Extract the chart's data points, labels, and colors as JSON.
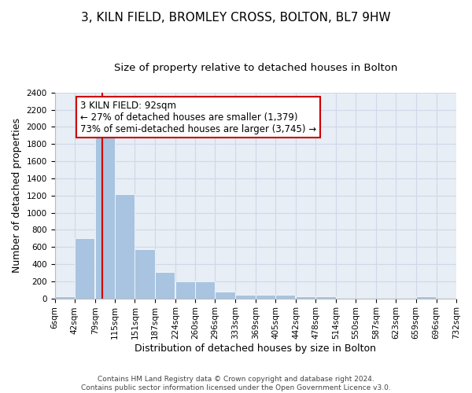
{
  "title": "3, KILN FIELD, BROMLEY CROSS, BOLTON, BL7 9HW",
  "subtitle": "Size of property relative to detached houses in Bolton",
  "xlabel": "Distribution of detached houses by size in Bolton",
  "ylabel": "Number of detached properties",
  "footer_line1": "Contains HM Land Registry data © Crown copyright and database right 2024.",
  "footer_line2": "Contains public sector information licensed under the Open Government Licence v3.0.",
  "bar_values": [
    20,
    700,
    1950,
    1220,
    570,
    305,
    200,
    200,
    80,
    45,
    38,
    38,
    20,
    20,
    0,
    0,
    0,
    0,
    25,
    0
  ],
  "bin_labels": [
    "6sqm",
    "42sqm",
    "79sqm",
    "115sqm",
    "151sqm",
    "187sqm",
    "224sqm",
    "260sqm",
    "296sqm",
    "333sqm",
    "369sqm",
    "405sqm",
    "442sqm",
    "478sqm",
    "514sqm",
    "550sqm",
    "587sqm",
    "623sqm",
    "659sqm",
    "696sqm",
    "732sqm"
  ],
  "bin_edges": [
    6,
    42,
    79,
    115,
    151,
    187,
    224,
    260,
    296,
    333,
    369,
    405,
    442,
    478,
    514,
    550,
    587,
    623,
    659,
    696,
    732
  ],
  "bar_color": "#a8c4e0",
  "bar_edge_color": "#ffffff",
  "property_size": 92,
  "red_line_color": "#cc0000",
  "annotation_text": "3 KILN FIELD: 92sqm\n← 27% of detached houses are smaller (1,379)\n73% of semi-detached houses are larger (3,745) →",
  "annotation_box_color": "#ffffff",
  "annotation_box_edge": "#cc0000",
  "ylim": [
    0,
    2400
  ],
  "yticks": [
    0,
    200,
    400,
    600,
    800,
    1000,
    1200,
    1400,
    1600,
    1800,
    2000,
    2200,
    2400
  ],
  "grid_color": "#d0d8e8",
  "background_color": "#e8eef5",
  "title_fontsize": 11,
  "subtitle_fontsize": 9.5,
  "axis_label_fontsize": 9,
  "tick_fontsize": 7.5,
  "annotation_fontsize": 8.5
}
